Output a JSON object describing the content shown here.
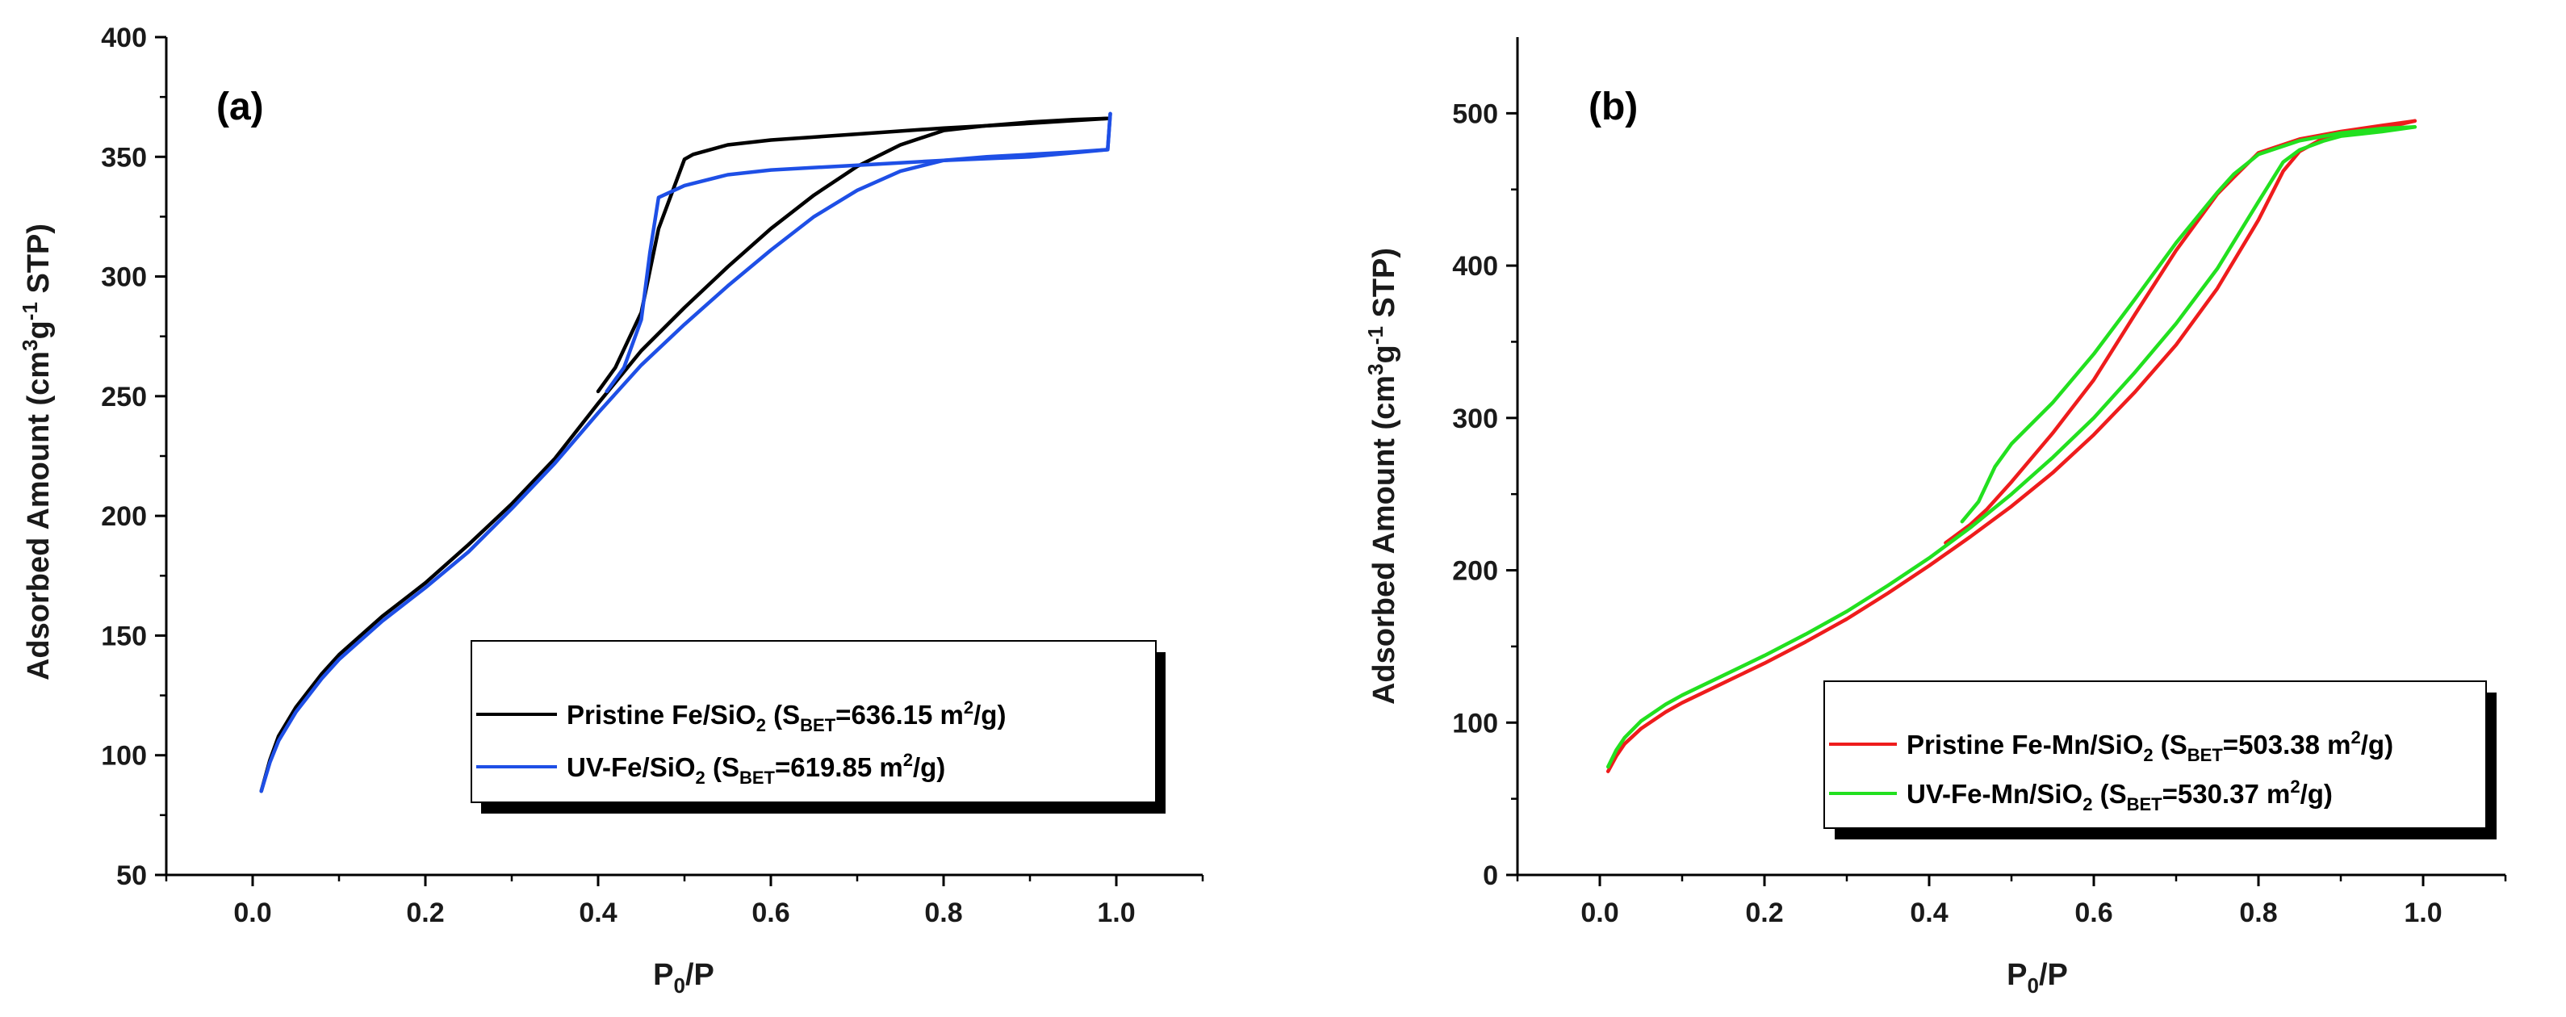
{
  "chart_data": [
    {
      "type": "line",
      "panel_label": "(a)",
      "xlabel": {
        "main": "P",
        "sub": "0",
        "rest": "/P"
      },
      "ylabel": {
        "p1": "Adsorbed Amount (cm",
        "sup1": "3",
        "p2": "g",
        "sup2": "-1",
        "p3": " STP)"
      },
      "xlim": [
        -0.1,
        1.1
      ],
      "ylim": [
        50,
        400
      ],
      "xticks": [
        0.0,
        0.2,
        0.4,
        0.6,
        0.8,
        1.0
      ],
      "xtick_labels": [
        "0.0",
        "0.2",
        "0.4",
        "0.6",
        "0.8",
        "1.0"
      ],
      "yticks": [
        50,
        100,
        150,
        200,
        250,
        300,
        350,
        400
      ],
      "ytick_labels": [
        "50",
        "100",
        "150",
        "200",
        "250",
        "300",
        "350",
        "400"
      ],
      "legend_position": "bottom-right",
      "series": [
        {
          "name": "Pristine Fe/SiO2",
          "legend": {
            "l1": "Pristine Fe/SiO",
            "l1sub": "2",
            "l2": " (S",
            "l2sub": "BET",
            "l3": "=636.15 m",
            "l3sup": "2",
            "l4": "/g)"
          },
          "color": "#000000",
          "adsorption": [
            [
              0.01,
              85
            ],
            [
              0.02,
              98
            ],
            [
              0.03,
              108
            ],
            [
              0.05,
              120
            ],
            [
              0.08,
              134
            ],
            [
              0.1,
              142
            ],
            [
              0.15,
              158
            ],
            [
              0.2,
              172
            ],
            [
              0.25,
              188
            ],
            [
              0.3,
              205
            ],
            [
              0.35,
              224
            ],
            [
              0.4,
              247
            ],
            [
              0.45,
              269
            ],
            [
              0.5,
              287
            ],
            [
              0.55,
              304
            ],
            [
              0.6,
              320
            ],
            [
              0.65,
              334
            ],
            [
              0.7,
              346
            ],
            [
              0.75,
              355
            ],
            [
              0.8,
              361
            ],
            [
              0.85,
              363
            ],
            [
              0.9,
              364.5
            ],
            [
              0.95,
              365.5
            ],
            [
              0.99,
              366
            ]
          ],
          "desorption": [
            [
              0.99,
              366
            ],
            [
              0.9,
              364
            ],
            [
              0.8,
              362
            ],
            [
              0.7,
              359.5
            ],
            [
              0.6,
              357
            ],
            [
              0.55,
              355
            ],
            [
              0.51,
              351
            ],
            [
              0.5,
              349
            ],
            [
              0.47,
              320
            ],
            [
              0.45,
              285
            ],
            [
              0.42,
              262
            ],
            [
              0.4,
              252
            ]
          ]
        },
        {
          "name": "UV-Fe/SiO2",
          "legend": {
            "l1": "UV-Fe/SiO",
            "l1sub": "2",
            "l2": " (S",
            "l2sub": "BET",
            "l3": "=619.85 m",
            "l3sup": "2",
            "l4": "/g)"
          },
          "color": "#1e4fe6",
          "adsorption": [
            [
              0.01,
              85
            ],
            [
              0.02,
              97
            ],
            [
              0.03,
              106
            ],
            [
              0.05,
              118
            ],
            [
              0.08,
              132
            ],
            [
              0.1,
              140
            ],
            [
              0.15,
              156
            ],
            [
              0.2,
              170
            ],
            [
              0.25,
              185
            ],
            [
              0.3,
              203
            ],
            [
              0.35,
              222
            ],
            [
              0.4,
              243
            ],
            [
              0.45,
              263
            ],
            [
              0.5,
              280
            ],
            [
              0.55,
              296
            ],
            [
              0.6,
              311
            ],
            [
              0.65,
              325
            ],
            [
              0.7,
              336
            ],
            [
              0.75,
              344
            ],
            [
              0.8,
              348.5
            ],
            [
              0.85,
              350
            ],
            [
              0.9,
              351
            ],
            [
              0.95,
              352
            ],
            [
              0.99,
              353
            ],
            [
              0.993,
              368
            ]
          ],
          "desorption": [
            [
              0.993,
              368
            ],
            [
              0.99,
              353
            ],
            [
              0.9,
              350
            ],
            [
              0.8,
              348.5
            ],
            [
              0.7,
              346.5
            ],
            [
              0.6,
              344.5
            ],
            [
              0.55,
              342.5
            ],
            [
              0.5,
              338
            ],
            [
              0.47,
              333
            ],
            [
              0.46,
              310
            ],
            [
              0.45,
              282
            ],
            [
              0.43,
              262
            ],
            [
              0.41,
              252
            ]
          ]
        }
      ]
    },
    {
      "type": "line",
      "panel_label": "(b)",
      "xlabel": {
        "main": "P",
        "sub": "0",
        "rest": "/P"
      },
      "ylabel": {
        "p1": "Adsorbed Amount (cm",
        "sup1": "3",
        "p2": "g",
        "sup2": "-1",
        "p3": " STP)"
      },
      "xlim": [
        -0.1,
        1.1
      ],
      "ylim": [
        0,
        550
      ],
      "xticks": [
        0.0,
        0.2,
        0.4,
        0.6,
        0.8,
        1.0
      ],
      "xtick_labels": [
        "0.0",
        "0.2",
        "0.4",
        "0.6",
        "0.8",
        "1.0"
      ],
      "yticks": [
        0,
        100,
        200,
        300,
        400,
        500
      ],
      "ytick_labels": [
        "0",
        "100",
        "200",
        "300",
        "400",
        "500"
      ],
      "legend_position": "bottom-right",
      "series": [
        {
          "name": "Pristine Fe-Mn/SiO2",
          "legend": {
            "l1": "Pristine Fe-Mn/SiO",
            "l1sub": "2",
            "l2": " (S",
            "l2sub": "BET",
            "l3": "=503.38 m",
            "l3sup": "2",
            "l4": "/g)"
          },
          "color": "#ee1c1c",
          "adsorption": [
            [
              0.01,
              68
            ],
            [
              0.02,
              78
            ],
            [
              0.03,
              86
            ],
            [
              0.05,
              96
            ],
            [
              0.08,
              107
            ],
            [
              0.1,
              113
            ],
            [
              0.15,
              126
            ],
            [
              0.2,
              139
            ],
            [
              0.25,
              153
            ],
            [
              0.3,
              168
            ],
            [
              0.35,
              185
            ],
            [
              0.4,
              203
            ],
            [
              0.45,
              222
            ],
            [
              0.5,
              242
            ],
            [
              0.55,
              264
            ],
            [
              0.6,
              289
            ],
            [
              0.65,
              317
            ],
            [
              0.7,
              348
            ],
            [
              0.75,
              385
            ],
            [
              0.8,
              430
            ],
            [
              0.83,
              462
            ],
            [
              0.85,
              475
            ],
            [
              0.88,
              484
            ],
            [
              0.9,
              487
            ],
            [
              0.95,
              490
            ],
            [
              0.99,
              495
            ]
          ],
          "desorption": [
            [
              0.99,
              495
            ],
            [
              0.95,
              492
            ],
            [
              0.9,
              488
            ],
            [
              0.85,
              483
            ],
            [
              0.8,
              474
            ],
            [
              0.77,
              458
            ],
            [
              0.75,
              447
            ],
            [
              0.7,
              410
            ],
            [
              0.65,
              368
            ],
            [
              0.6,
              325
            ],
            [
              0.55,
              290
            ],
            [
              0.5,
              258
            ],
            [
              0.47,
              240
            ],
            [
              0.45,
              230
            ],
            [
              0.42,
              218
            ]
          ]
        },
        {
          "name": "UV-Fe-Mn/SiO2",
          "legend": {
            "l1": "UV-Fe-Mn/SiO",
            "l1sub": "2",
            "l2": " (S",
            "l2sub": "BET",
            "l3": "=530.37 m",
            "l3sup": "2",
            "l4": "/g)"
          },
          "color": "#22e01f",
          "adsorption": [
            [
              0.01,
              71
            ],
            [
              0.02,
              82
            ],
            [
              0.03,
              90
            ],
            [
              0.05,
              101
            ],
            [
              0.08,
              112
            ],
            [
              0.1,
              118
            ],
            [
              0.15,
              131
            ],
            [
              0.2,
              144
            ],
            [
              0.25,
              158
            ],
            [
              0.3,
              173
            ],
            [
              0.35,
              190
            ],
            [
              0.4,
              208
            ],
            [
              0.45,
              228
            ],
            [
              0.5,
              250
            ],
            [
              0.55,
              274
            ],
            [
              0.6,
              300
            ],
            [
              0.65,
              330
            ],
            [
              0.7,
              362
            ],
            [
              0.75,
              398
            ],
            [
              0.8,
              442
            ],
            [
              0.83,
              468
            ],
            [
              0.85,
              476
            ],
            [
              0.88,
              482
            ],
            [
              0.9,
              485
            ],
            [
              0.95,
              488
            ],
            [
              0.99,
              491
            ]
          ],
          "desorption": [
            [
              0.99,
              491
            ],
            [
              0.95,
              490
            ],
            [
              0.9,
              487
            ],
            [
              0.85,
              482
            ],
            [
              0.8,
              473
            ],
            [
              0.77,
              460
            ],
            [
              0.75,
              448
            ],
            [
              0.7,
              415
            ],
            [
              0.65,
              378
            ],
            [
              0.6,
              342
            ],
            [
              0.55,
              310
            ],
            [
              0.5,
              283
            ],
            [
              0.48,
              268
            ],
            [
              0.46,
              245
            ],
            [
              0.44,
              232
            ]
          ]
        }
      ]
    }
  ]
}
